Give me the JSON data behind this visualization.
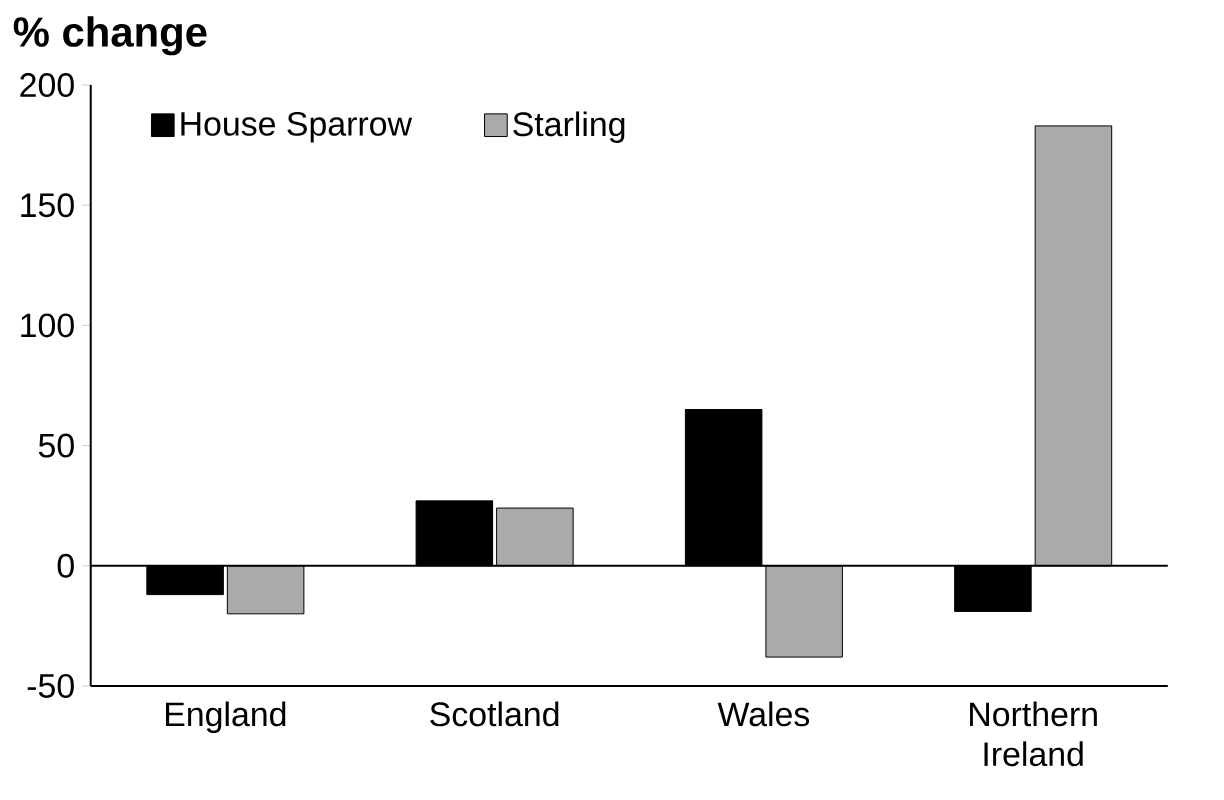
{
  "chart_data": {
    "type": "bar",
    "ylabel": "% change",
    "categories": [
      "England",
      "Scotland",
      "Wales",
      "Northern Ireland"
    ],
    "series": [
      {
        "name": "House Sparrow",
        "color": "#000000",
        "values": [
          -12,
          27,
          65,
          -19
        ]
      },
      {
        "name": "Starling",
        "color": "#aaaaaa",
        "values": [
          -20,
          24,
          -38,
          183
        ]
      }
    ],
    "ylim": [
      -50,
      200
    ],
    "yticks": [
      -50,
      0,
      50,
      100,
      150,
      200
    ],
    "legend": "top left"
  }
}
